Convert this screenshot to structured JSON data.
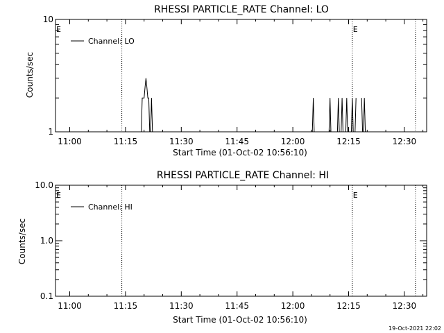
{
  "footer_timestamp": "19-Oct-2021 22:02",
  "colors": {
    "background": "#ffffff",
    "foreground": "#000000"
  },
  "chart_data": [
    {
      "type": "line",
      "title": "RHESSI PARTICLE_RATE Channel: LO",
      "xlabel": "Start Time (01-Oct-02 10:56:10)",
      "ylabel": "Counts/sec",
      "yscale": "log",
      "ylim": [
        1,
        10
      ],
      "xlim": [
        "10:56:10",
        "12:36:00"
      ],
      "x_ticks": [
        "11:00",
        "11:15",
        "11:30",
        "11:45",
        "12:00",
        "12:15",
        "12:30"
      ],
      "y_ticks": [
        "1",
        "10"
      ],
      "legend": {
        "entries": [
          "Channel: LO"
        ],
        "placement": "top-left"
      },
      "markers": [
        {
          "label": "E",
          "time": "10:56:10"
        },
        {
          "label": "E",
          "time": "12:16:00"
        }
      ],
      "dotted_lines": [
        "11:14:00",
        "12:16:00",
        "12:33:00"
      ],
      "series": [
        {
          "name": "Channel: LO",
          "points": [
            [
              "11:19:15",
              1
            ],
            [
              "11:19:30",
              2
            ],
            [
              "11:20:00",
              2
            ],
            [
              "11:20:15",
              2.5
            ],
            [
              "11:20:30",
              3
            ],
            [
              "11:20:45",
              2.5
            ],
            [
              "11:21:00",
              2
            ],
            [
              "11:21:15",
              2
            ],
            [
              "11:21:30",
              1
            ],
            [
              "11:21:45",
              1
            ],
            [
              "11:22:00",
              2
            ],
            [
              "11:22:15",
              1
            ],
            [
              "12:05:15",
              1
            ],
            [
              "12:05:30",
              2
            ],
            [
              "12:05:45",
              1
            ],
            [
              "12:09:45",
              1
            ],
            [
              "12:10:00",
              2
            ],
            [
              "12:10:15",
              1
            ],
            [
              "12:12:00",
              1
            ],
            [
              "12:12:15",
              2
            ],
            [
              "12:12:30",
              1
            ],
            [
              "12:13:00",
              1
            ],
            [
              "12:13:15",
              2
            ],
            [
              "12:13:30",
              1
            ],
            [
              "12:14:15",
              1
            ],
            [
              "12:14:30",
              2
            ],
            [
              "12:14:45",
              1
            ],
            [
              "12:15:45",
              1
            ],
            [
              "12:16:00",
              2
            ],
            [
              "12:16:15",
              1
            ],
            [
              "12:16:45",
              1
            ],
            [
              "12:17:00",
              2
            ],
            [
              "12:18:30",
              2
            ],
            [
              "12:18:45",
              1
            ],
            [
              "12:19:00",
              1
            ],
            [
              "12:19:15",
              2
            ],
            [
              "12:19:30",
              1
            ]
          ]
        }
      ]
    },
    {
      "type": "line",
      "title": "RHESSI PARTICLE_RATE Channel: HI",
      "xlabel": "Start Time (01-Oct-02 10:56:10)",
      "ylabel": "Counts/sec",
      "yscale": "log",
      "ylim": [
        0.1,
        10
      ],
      "xlim": [
        "10:56:10",
        "12:36:00"
      ],
      "x_ticks": [
        "11:00",
        "11:15",
        "11:30",
        "11:45",
        "12:00",
        "12:15",
        "12:30"
      ],
      "y_ticks": [
        "0.1",
        "1.0",
        "10.0"
      ],
      "legend": {
        "entries": [
          "Channel: HI"
        ],
        "placement": "top-left"
      },
      "markers": [
        {
          "label": "E",
          "time": "10:56:10"
        },
        {
          "label": "E",
          "time": "12:16:00"
        }
      ],
      "dotted_lines": [
        "11:14:00",
        "12:16:00",
        "12:33:00"
      ],
      "series": [
        {
          "name": "Channel: HI",
          "points": []
        }
      ]
    }
  ]
}
